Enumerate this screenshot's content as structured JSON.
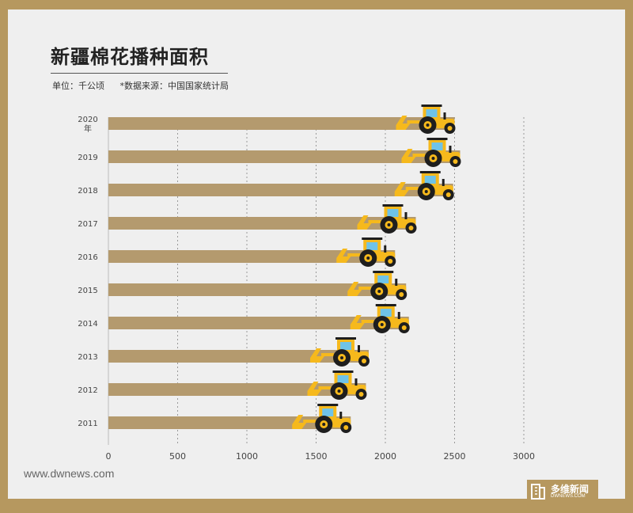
{
  "header": {
    "title": "新疆棉花播种面积",
    "unit": "单位：千公顷",
    "source": "*数据来源：中国国家统计局"
  },
  "footer": {
    "website": "www.dwnews.com",
    "logo_cn": "多维新闻",
    "logo_en": "DWNEWS.COM"
  },
  "colors": {
    "bar": "#b49a6e",
    "tractor_body": "#f6b91c",
    "tractor_dark": "#1e1e1e",
    "gridline": "#999999",
    "background": "#b6985f"
  },
  "chart_data": {
    "type": "bar",
    "orientation": "horizontal",
    "title": "新疆棉花播种面积",
    "unit": "千公顷",
    "categories": [
      "2020 年",
      "2019",
      "2018",
      "2017",
      "2016",
      "2015",
      "2014",
      "2013",
      "2012",
      "2011"
    ],
    "values": [
      2500,
      2540,
      2490,
      2220,
      2070,
      2150,
      2170,
      1880,
      1860,
      1750
    ],
    "xlim": [
      0,
      3000
    ],
    "xticks": [
      0,
      500,
      1000,
      1500,
      2000,
      2500,
      3000
    ],
    "grid": true,
    "decoration": "tractor-icon at end of each bar"
  }
}
